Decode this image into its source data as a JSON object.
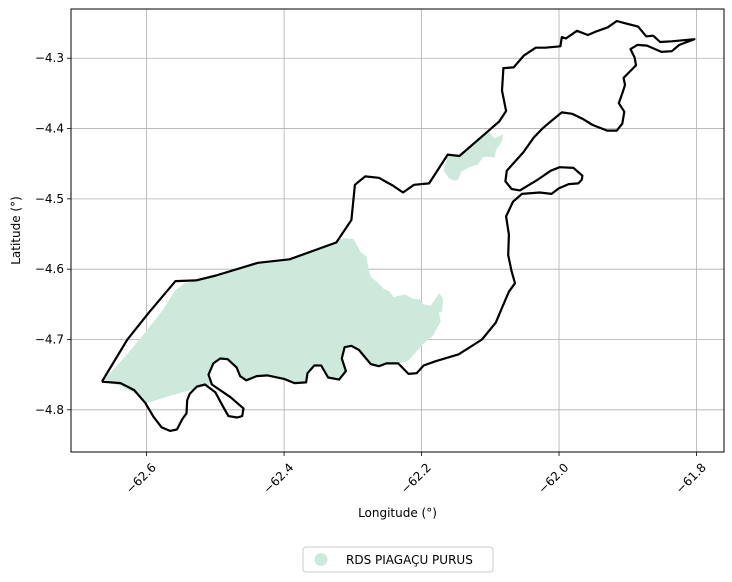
{
  "chart_data": {
    "type": "map",
    "xlabel": "Longitude (°)",
    "ylabel": "Latitude (°)",
    "xlim": [
      -62.71,
      -61.76
    ],
    "ylim": [
      -4.86,
      -4.23
    ],
    "x_ticks": [
      -62.6,
      -62.4,
      -62.2,
      -62.0,
      -61.8
    ],
    "x_tick_labels": [
      "−62.6",
      "−62.4",
      "−62.2",
      "−62.0",
      "−61.8"
    ],
    "y_ticks": [
      -4.3,
      -4.4,
      -4.5,
      -4.6,
      -4.7,
      -4.8
    ],
    "y_tick_labels": [
      "−4.3",
      "−4.4",
      "−4.5",
      "−4.6",
      "−4.7",
      "−4.8"
    ],
    "grid": true,
    "legend": {
      "position": "bottom-center",
      "entries": [
        {
          "label": "RDS PIAGAÇU PURUS",
          "color": "#cce9dc"
        }
      ]
    },
    "fill_color": "#cce9dc",
    "outline_color": "#000000",
    "outline": [
      [
        -62.665,
        -4.76
      ],
      [
        -62.638,
        -4.762
      ],
      [
        -62.618,
        -4.772
      ],
      [
        -62.602,
        -4.79
      ],
      [
        -62.59,
        -4.81
      ],
      [
        -62.578,
        -4.825
      ],
      [
        -62.566,
        -4.83
      ],
      [
        -62.556,
        -4.828
      ],
      [
        -62.548,
        -4.813
      ],
      [
        -62.542,
        -4.805
      ],
      [
        -62.541,
        -4.786
      ],
      [
        -62.537,
        -4.777
      ],
      [
        -62.527,
        -4.767
      ],
      [
        -62.515,
        -4.764
      ],
      [
        -62.5,
        -4.775
      ],
      [
        -62.489,
        -4.795
      ],
      [
        -62.481,
        -4.809
      ],
      [
        -62.468,
        -4.811
      ],
      [
        -62.461,
        -4.809
      ],
      [
        -62.459,
        -4.798
      ],
      [
        -62.478,
        -4.782
      ],
      [
        -62.505,
        -4.764
      ],
      [
        -62.51,
        -4.75
      ],
      [
        -62.503,
        -4.734
      ],
      [
        -62.493,
        -4.727
      ],
      [
        -62.482,
        -4.728
      ],
      [
        -62.469,
        -4.74
      ],
      [
        -62.464,
        -4.752
      ],
      [
        -62.455,
        -4.758
      ],
      [
        -62.44,
        -4.752
      ],
      [
        -62.424,
        -4.751
      ],
      [
        -62.4,
        -4.756
      ],
      [
        -62.385,
        -4.762
      ],
      [
        -62.368,
        -4.761
      ],
      [
        -62.366,
        -4.748
      ],
      [
        -62.356,
        -4.737
      ],
      [
        -62.346,
        -4.737
      ],
      [
        -62.336,
        -4.754
      ],
      [
        -62.32,
        -4.757
      ],
      [
        -62.31,
        -4.745
      ],
      [
        -62.316,
        -4.727
      ],
      [
        -62.312,
        -4.711
      ],
      [
        -62.302,
        -4.709
      ],
      [
        -62.291,
        -4.715
      ],
      [
        -62.274,
        -4.735
      ],
      [
        -62.262,
        -4.738
      ],
      [
        -62.251,
        -4.734
      ],
      [
        -62.234,
        -4.734
      ],
      [
        -62.219,
        -4.749
      ],
      [
        -62.207,
        -4.748
      ],
      [
        -62.197,
        -4.737
      ],
      [
        -62.18,
        -4.731
      ],
      [
        -62.146,
        -4.721
      ],
      [
        -62.112,
        -4.7
      ],
      [
        -62.092,
        -4.676
      ],
      [
        -62.083,
        -4.655
      ],
      [
        -62.073,
        -4.632
      ],
      [
        -62.064,
        -4.62
      ],
      [
        -62.069,
        -4.603
      ],
      [
        -62.074,
        -4.58
      ],
      [
        -62.073,
        -4.551
      ],
      [
        -62.077,
        -4.525
      ],
      [
        -62.067,
        -4.504
      ],
      [
        -62.054,
        -4.493
      ],
      [
        -62.028,
        -4.491
      ],
      [
        -62.011,
        -4.493
      ],
      [
        -62.0,
        -4.485
      ],
      [
        -61.986,
        -4.479
      ],
      [
        -61.972,
        -4.478
      ],
      [
        -61.967,
        -4.473
      ],
      [
        -61.966,
        -4.467
      ],
      [
        -61.979,
        -4.456
      ],
      [
        -61.999,
        -4.455
      ],
      [
        -62.012,
        -4.46
      ],
      [
        -62.033,
        -4.474
      ],
      [
        -62.057,
        -4.488
      ],
      [
        -62.069,
        -4.486
      ],
      [
        -62.078,
        -4.475
      ],
      [
        -62.076,
        -4.46
      ],
      [
        -62.066,
        -4.449
      ],
      [
        -62.052,
        -4.434
      ],
      [
        -62.037,
        -4.413
      ],
      [
        -62.023,
        -4.399
      ],
      [
        -62.011,
        -4.389
      ],
      [
        -61.996,
        -4.377
      ],
      [
        -61.981,
        -4.379
      ],
      [
        -61.966,
        -4.386
      ],
      [
        -61.951,
        -4.395
      ],
      [
        -61.93,
        -4.403
      ],
      [
        -61.916,
        -4.403
      ],
      [
        -61.908,
        -4.393
      ],
      [
        -61.905,
        -4.376
      ],
      [
        -61.913,
        -4.364
      ],
      [
        -61.907,
        -4.347
      ],
      [
        -61.904,
        -4.338
      ],
      [
        -61.906,
        -4.328
      ],
      [
        -61.888,
        -4.31
      ],
      [
        -61.89,
        -4.299
      ],
      [
        -61.896,
        -4.287
      ],
      [
        -61.886,
        -4.281
      ],
      [
        -61.872,
        -4.282
      ],
      [
        -61.851,
        -4.291
      ],
      [
        -61.836,
        -4.29
      ],
      [
        -61.825,
        -4.281
      ],
      [
        -61.803,
        -4.273
      ],
      [
        -61.836,
        -4.276
      ],
      [
        -61.853,
        -4.277
      ],
      [
        -61.863,
        -4.268
      ],
      [
        -61.873,
        -4.269
      ],
      [
        -61.885,
        -4.255
      ],
      [
        -61.905,
        -4.25
      ],
      [
        -61.916,
        -4.247
      ],
      [
        -61.929,
        -4.256
      ],
      [
        -61.946,
        -4.262
      ],
      [
        -61.958,
        -4.267
      ],
      [
        -61.974,
        -4.261
      ],
      [
        -61.99,
        -4.272
      ],
      [
        -61.996,
        -4.27
      ],
      [
        -61.998,
        -4.283
      ],
      [
        -62.02,
        -4.285
      ],
      [
        -62.034,
        -4.285
      ],
      [
        -62.051,
        -4.296
      ],
      [
        -62.066,
        -4.313
      ],
      [
        -62.081,
        -4.314
      ],
      [
        -62.083,
        -4.346
      ],
      [
        -62.077,
        -4.375
      ],
      [
        -62.087,
        -4.39
      ],
      [
        -62.106,
        -4.406
      ],
      [
        -62.145,
        -4.439
      ],
      [
        -62.162,
        -4.437
      ],
      [
        -62.189,
        -4.478
      ],
      [
        -62.211,
        -4.48
      ],
      [
        -62.227,
        -4.491
      ],
      [
        -62.242,
        -4.481
      ],
      [
        -62.262,
        -4.47
      ],
      [
        -62.282,
        -4.468
      ],
      [
        -62.297,
        -4.48
      ],
      [
        -62.302,
        -4.53
      ],
      [
        -62.324,
        -4.562
      ],
      [
        -62.392,
        -4.586
      ],
      [
        -62.438,
        -4.591
      ],
      [
        -62.499,
        -4.609
      ],
      [
        -62.528,
        -4.616
      ],
      [
        -62.558,
        -4.617
      ],
      [
        -62.597,
        -4.662
      ],
      [
        -62.628,
        -4.7
      ],
      [
        -62.665,
        -4.76
      ]
    ],
    "fill_polygons": [
      [
        [
          -62.665,
          -4.76
        ],
        [
          -62.63,
          -4.723
        ],
        [
          -62.602,
          -4.69
        ],
        [
          -62.578,
          -4.66
        ],
        [
          -62.558,
          -4.63
        ],
        [
          -62.545,
          -4.62
        ],
        [
          -62.528,
          -4.616
        ],
        [
          -62.499,
          -4.609
        ],
        [
          -62.438,
          -4.591
        ],
        [
          -62.392,
          -4.586
        ],
        [
          -62.36,
          -4.573
        ],
        [
          -62.314,
          -4.556
        ],
        [
          -62.299,
          -4.557
        ],
        [
          -62.289,
          -4.575
        ],
        [
          -62.28,
          -4.582
        ],
        [
          -62.277,
          -4.601
        ],
        [
          -62.273,
          -4.612
        ],
        [
          -62.265,
          -4.618
        ],
        [
          -62.255,
          -4.628
        ],
        [
          -62.247,
          -4.631
        ],
        [
          -62.241,
          -4.64
        ],
        [
          -62.234,
          -4.638
        ],
        [
          -62.224,
          -4.636
        ],
        [
          -62.213,
          -4.642
        ],
        [
          -62.203,
          -4.643
        ],
        [
          -62.197,
          -4.65
        ],
        [
          -62.187,
          -4.652
        ],
        [
          -62.174,
          -4.634
        ],
        [
          -62.169,
          -4.642
        ],
        [
          -62.17,
          -4.66
        ],
        [
          -62.175,
          -4.662
        ],
        [
          -62.172,
          -4.674
        ],
        [
          -62.183,
          -4.694
        ],
        [
          -62.198,
          -4.707
        ],
        [
          -62.22,
          -4.731
        ],
        [
          -62.234,
          -4.734
        ],
        [
          -62.251,
          -4.734
        ],
        [
          -62.262,
          -4.738
        ],
        [
          -62.274,
          -4.735
        ],
        [
          -62.291,
          -4.715
        ],
        [
          -62.302,
          -4.709
        ],
        [
          -62.312,
          -4.711
        ],
        [
          -62.316,
          -4.727
        ],
        [
          -62.31,
          -4.745
        ],
        [
          -62.32,
          -4.757
        ],
        [
          -62.336,
          -4.754
        ],
        [
          -62.346,
          -4.737
        ],
        [
          -62.356,
          -4.737
        ],
        [
          -62.366,
          -4.748
        ],
        [
          -62.368,
          -4.761
        ],
        [
          -62.385,
          -4.762
        ],
        [
          -62.4,
          -4.756
        ],
        [
          -62.424,
          -4.751
        ],
        [
          -62.44,
          -4.752
        ],
        [
          -62.455,
          -4.758
        ],
        [
          -62.464,
          -4.752
        ],
        [
          -62.469,
          -4.74
        ],
        [
          -62.482,
          -4.728
        ],
        [
          -62.493,
          -4.727
        ],
        [
          -62.503,
          -4.734
        ],
        [
          -62.51,
          -4.75
        ],
        [
          -62.505,
          -4.764
        ],
        [
          -62.536,
          -4.772
        ],
        [
          -62.566,
          -4.78
        ],
        [
          -62.598,
          -4.79
        ],
        [
          -62.62,
          -4.775
        ],
        [
          -62.64,
          -4.765
        ],
        [
          -62.665,
          -4.76
        ]
      ],
      [
        [
          -62.162,
          -4.437
        ],
        [
          -62.145,
          -4.438
        ],
        [
          -62.123,
          -4.418
        ],
        [
          -62.106,
          -4.406
        ],
        [
          -62.102,
          -4.404
        ],
        [
          -62.094,
          -4.414
        ],
        [
          -62.081,
          -4.408
        ],
        [
          -62.083,
          -4.418
        ],
        [
          -62.092,
          -4.431
        ],
        [
          -62.093,
          -4.441
        ],
        [
          -62.11,
          -4.44
        ],
        [
          -62.118,
          -4.451
        ],
        [
          -62.128,
          -4.454
        ],
        [
          -62.142,
          -4.461
        ],
        [
          -62.147,
          -4.473
        ],
        [
          -62.153,
          -4.474
        ],
        [
          -62.16,
          -4.471
        ],
        [
          -62.168,
          -4.46
        ],
        [
          -62.162,
          -4.437
        ]
      ]
    ]
  }
}
